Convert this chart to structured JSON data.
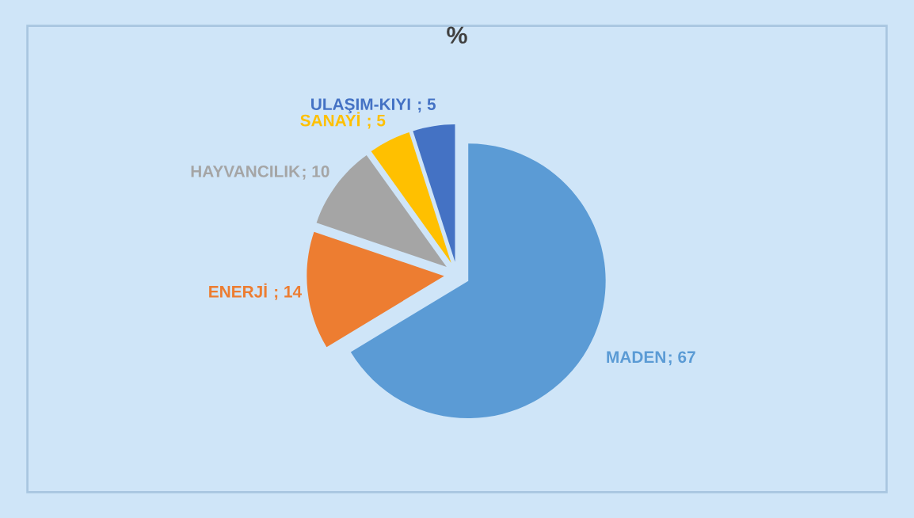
{
  "chart_data": {
    "type": "pie",
    "title": "%",
    "categories": [
      "MADEN",
      "ENERJİ",
      "HAYVANCILIK",
      "SANAYİ",
      "ULAŞIM-KIYI"
    ],
    "values": [
      67,
      14,
      10,
      5,
      5
    ],
    "colors": [
      "#5b9bd5",
      "#ed7d31",
      "#a5a5a5",
      "#ffc000",
      "#4472c4"
    ],
    "value_labels": [
      "; 67",
      " ; 14",
      "; 10",
      " ; 5",
      " ; 5"
    ],
    "legend": false
  }
}
